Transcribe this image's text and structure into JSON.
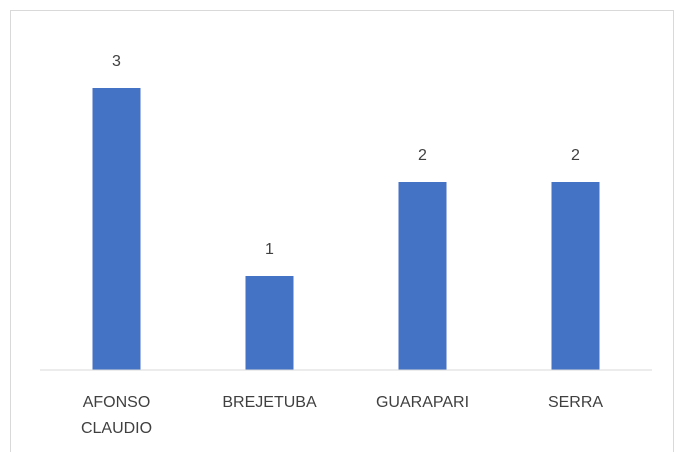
{
  "chart_data": {
    "type": "bar",
    "categories": [
      "AFONSO CLAUDIO",
      "BREJETUBA",
      "GUARAPARI",
      "SERRA"
    ],
    "values": [
      3,
      1,
      2,
      2
    ],
    "color": "#4472c4",
    "ylim": [
      0,
      3.5
    ],
    "grid": false,
    "data_labels": true
  }
}
